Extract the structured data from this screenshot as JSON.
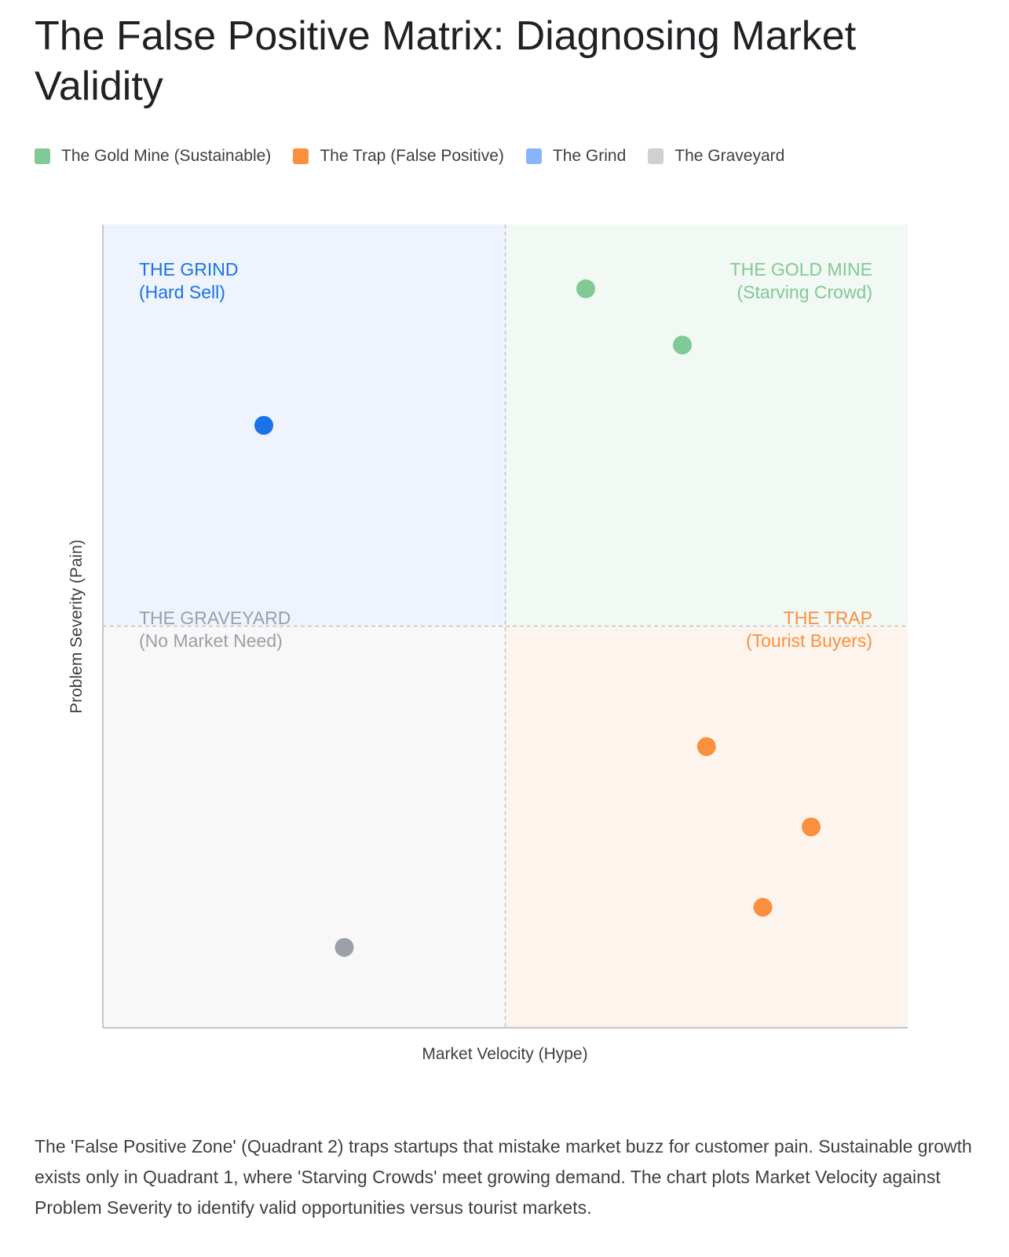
{
  "title": "The False Positive Matrix: Diagnosing Market Validity",
  "legend": [
    {
      "label": "The Gold Mine (Sustainable)",
      "color": "#81c995"
    },
    {
      "label": "The Trap (False Positive)",
      "color": "#fa903e"
    },
    {
      "label": "The Grind",
      "color": "#8ab4f8"
    },
    {
      "label": "The Graveyard",
      "color": "#d0d0d0"
    }
  ],
  "chart_data": {
    "type": "scatter",
    "title": "The False Positive Matrix: Diagnosing Market Validity",
    "xlabel": "Market Velocity (Hype)",
    "ylabel": "Problem Severity (Pain)",
    "xlim": [
      0,
      100
    ],
    "ylim": [
      0,
      100
    ],
    "grid": false,
    "legend_position": "top-left",
    "quadrant_divider": {
      "x": 50,
      "y": 50
    },
    "quadrants": [
      {
        "key": "grind",
        "title": "THE GRIND",
        "subtitle": "(Hard Sell)",
        "bg": "#eef3fd",
        "label_color": "#1a73e8"
      },
      {
        "key": "gold",
        "title": "THE GOLD MINE",
        "subtitle": "(Starving Crowd)",
        "bg": "#f2f8f4",
        "label_color": "#81c995"
      },
      {
        "key": "graveyard",
        "title": "THE GRAVEYARD",
        "subtitle": "(No Market Need)",
        "bg": "#f8f8f8",
        "label_color": "#9aa0a6"
      },
      {
        "key": "trap",
        "title": "THE TRAP",
        "subtitle": "(Tourist Buyers)",
        "bg": "#fef4ee",
        "label_color": "#fa903e"
      }
    ],
    "series": [
      {
        "name": "The Gold Mine (Sustainable)",
        "color": "#81c995",
        "points": [
          {
            "x": 60,
            "y": 92
          },
          {
            "x": 72,
            "y": 85
          }
        ]
      },
      {
        "name": "The Trap (False Positive)",
        "color": "#fa903e",
        "points": [
          {
            "x": 75,
            "y": 35
          },
          {
            "x": 88,
            "y": 25
          },
          {
            "x": 82,
            "y": 15
          }
        ]
      },
      {
        "name": "The Grind",
        "color": "#1a73e8",
        "points": [
          {
            "x": 20,
            "y": 75
          }
        ]
      },
      {
        "name": "The Graveyard",
        "color": "#9aa0a6",
        "points": [
          {
            "x": 30,
            "y": 10
          }
        ]
      }
    ]
  },
  "caption": "The 'False Positive Zone' (Quadrant 2) traps startups that mistake market buzz for customer pain. Sustainable growth exists only in Quadrant 1, where 'Starving Crowds' meet growing demand. The chart plots Market Velocity against Problem Severity to identify valid opportunities versus tourist markets."
}
